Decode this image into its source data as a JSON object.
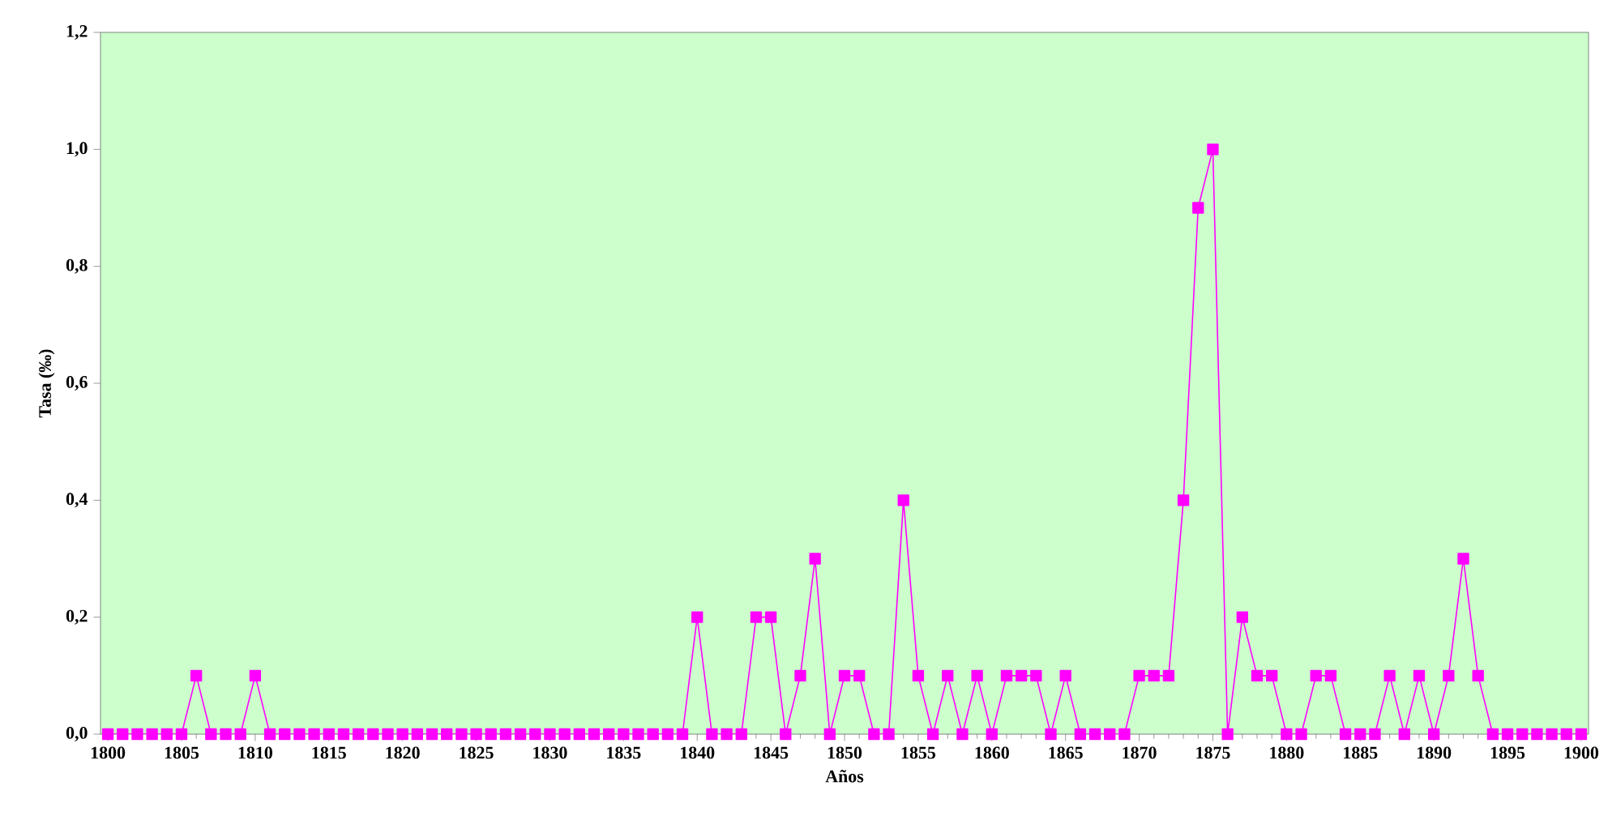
{
  "chart_data": {
    "type": "line",
    "xlabel": "Años",
    "ylabel": "Tasa (‰)",
    "x": [
      1800,
      1801,
      1802,
      1803,
      1804,
      1805,
      1806,
      1807,
      1808,
      1809,
      1810,
      1811,
      1812,
      1813,
      1814,
      1815,
      1816,
      1817,
      1818,
      1819,
      1820,
      1821,
      1822,
      1823,
      1824,
      1825,
      1826,
      1827,
      1828,
      1829,
      1830,
      1831,
      1832,
      1833,
      1834,
      1835,
      1836,
      1837,
      1838,
      1839,
      1840,
      1841,
      1842,
      1843,
      1844,
      1845,
      1846,
      1847,
      1848,
      1849,
      1850,
      1851,
      1852,
      1853,
      1854,
      1855,
      1856,
      1857,
      1858,
      1859,
      1860,
      1861,
      1862,
      1863,
      1864,
      1865,
      1866,
      1867,
      1868,
      1869,
      1870,
      1871,
      1872,
      1873,
      1874,
      1875,
      1876,
      1877,
      1878,
      1879,
      1880,
      1881,
      1882,
      1883,
      1884,
      1885,
      1886,
      1887,
      1888,
      1889,
      1890,
      1891,
      1892,
      1893,
      1894,
      1895,
      1896,
      1897,
      1898,
      1899,
      1900
    ],
    "series": [
      {
        "color": "#ff00ff",
        "values": [
          0,
          0,
          0,
          0,
          0,
          0,
          0.1,
          0,
          0,
          0,
          0.1,
          0,
          0,
          0,
          0,
          0,
          0,
          0,
          0,
          0,
          0,
          0,
          0,
          0,
          0,
          0,
          0,
          0,
          0,
          0,
          0,
          0,
          0,
          0,
          0,
          0,
          0,
          0,
          0,
          0,
          0.2,
          0,
          0,
          0,
          0.2,
          0.2,
          0,
          0.1,
          0.3,
          0,
          0.1,
          0.1,
          0,
          0,
          0.4,
          0.1,
          0,
          0.1,
          0,
          0.1,
          0,
          0.1,
          0.1,
          0.1,
          0,
          0.1,
          0,
          0,
          0,
          0,
          0.1,
          0.1,
          0.1,
          0.4,
          0.9,
          1.0,
          0,
          0.2,
          0.1,
          0.1,
          0,
          0,
          0.1,
          0.1,
          0,
          0,
          0,
          0.1,
          0,
          0.1,
          0,
          0.1,
          0.3,
          0.1,
          0,
          0,
          0,
          0,
          0,
          0,
          0
        ]
      }
    ],
    "xlim": [
      1799.5,
      1900.5
    ],
    "xticks": [
      1800,
      1805,
      1810,
      1815,
      1820,
      1825,
      1830,
      1835,
      1840,
      1845,
      1850,
      1855,
      1860,
      1865,
      1870,
      1875,
      1880,
      1885,
      1890,
      1895,
      1900
    ],
    "ylim": [
      0,
      1.2
    ],
    "yticks": [
      {
        "value": 0,
        "label": "0,0"
      },
      {
        "value": 0.2,
        "label": "0,2"
      },
      {
        "value": 0.4,
        "label": "0,4"
      },
      {
        "value": 0.6,
        "label": "0,6"
      },
      {
        "value": 0.8,
        "label": "0,8"
      },
      {
        "value": 1.0,
        "label": "1,0"
      },
      {
        "value": 1.2,
        "label": "1,2"
      }
    ],
    "grid": false,
    "marker": "square",
    "line_style": "solid"
  }
}
